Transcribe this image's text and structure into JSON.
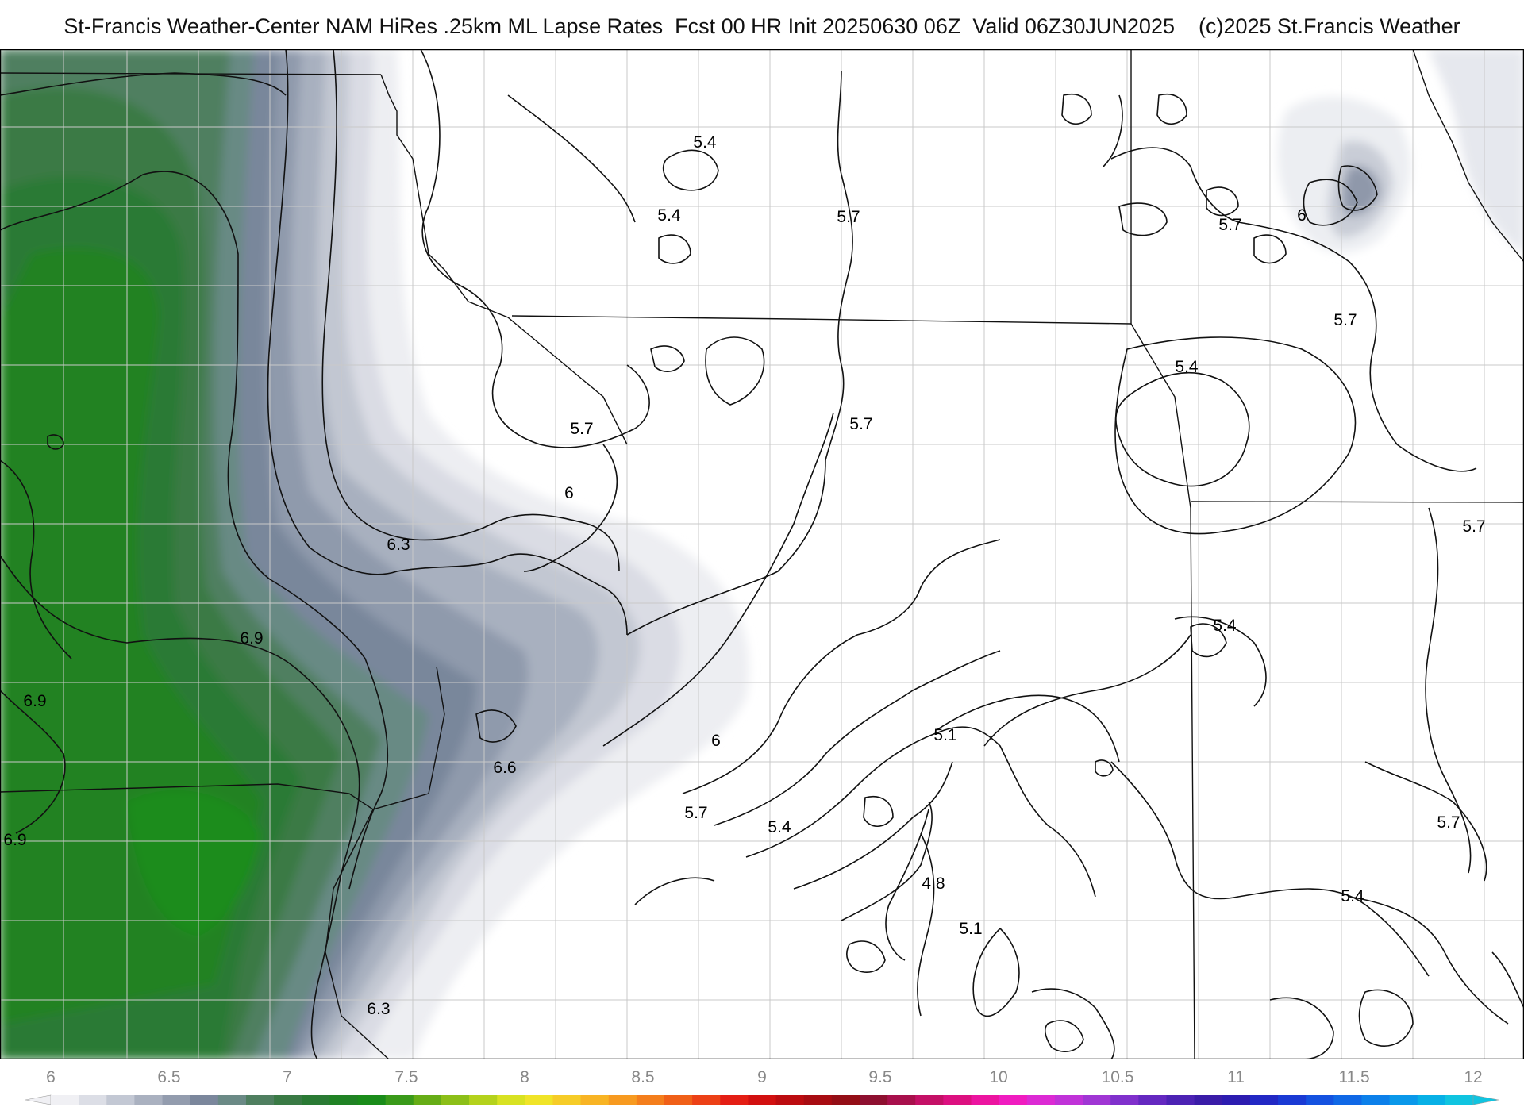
{
  "title": "St-Francis Weather-Center NAM HiRes .25km ML Lapse Rates  Fcst 00 HR Init 20250630 06Z  Valid 06Z30JUN2025    (c)2025 St.Francis Weather",
  "map": {
    "contour_labels": [
      {
        "text": "5.4"
      },
      {
        "text": "5.4"
      },
      {
        "text": "5.7"
      },
      {
        "text": "5.7"
      },
      {
        "text": "6"
      },
      {
        "text": "5.7"
      },
      {
        "text": "5.7"
      },
      {
        "text": "6"
      },
      {
        "text": "5.7"
      },
      {
        "text": "5.4"
      },
      {
        "text": "6.3"
      },
      {
        "text": "5.7"
      },
      {
        "text": "5.4"
      },
      {
        "text": "6.9"
      },
      {
        "text": "6.9"
      },
      {
        "text": "6.6"
      },
      {
        "text": "6"
      },
      {
        "text": "5.1"
      },
      {
        "text": "5.7"
      },
      {
        "text": "5.4"
      },
      {
        "text": "6.9"
      },
      {
        "text": "5.7"
      },
      {
        "text": "4.8"
      },
      {
        "text": "5.1"
      },
      {
        "text": "5.4"
      },
      {
        "text": "6.3"
      }
    ]
  },
  "colorbar": {
    "ticks": [
      "6",
      "6.5",
      "7",
      "7.5",
      "8",
      "8.5",
      "9",
      "9.5",
      "10",
      "10.5",
      "11",
      "11.5",
      "12"
    ],
    "colors": [
      "#f0f0f4",
      "#dcdee6",
      "#c3c8d4",
      "#aab1c0",
      "#939cae",
      "#7b879c",
      "#6b8a86",
      "#4f7f60",
      "#3a7a45",
      "#2a7a34",
      "#208224",
      "#1a8c1a",
      "#3a9a1a",
      "#66ad16",
      "#8cbf18",
      "#b4d21c",
      "#d8e222",
      "#f0e428",
      "#f6cc28",
      "#f8b424",
      "#f79a20",
      "#f47e1c",
      "#f06018",
      "#ec4016",
      "#e41e14",
      "#d21010",
      "#bc0c10",
      "#a80c12",
      "#940e16",
      "#8e1030",
      "#a8104c",
      "#c41066",
      "#dc1080",
      "#ec14a0",
      "#f01cc0",
      "#dc2ad4",
      "#c032d8",
      "#a036d4",
      "#8030cc",
      "#6428c0",
      "#4c22b4",
      "#3a1ca8",
      "#2c1cb0",
      "#2228c4",
      "#1a3ad4",
      "#1452e0",
      "#1068e6",
      "#0c80ea",
      "#0a98ea",
      "#08b0e6",
      "#10c4e0"
    ]
  }
}
